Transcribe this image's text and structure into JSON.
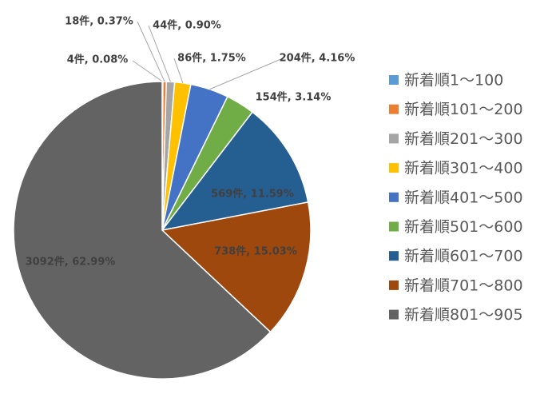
{
  "chart_data": {
    "type": "pie",
    "categories": [
      "新着順1～100",
      "新着順101～200",
      "新着順201～300",
      "新着順301～400",
      "新着順401～500",
      "新着順501～600",
      "新着順601～700",
      "新着順701～800",
      "新着順801～905"
    ],
    "values": [
      4,
      18,
      44,
      86,
      204,
      154,
      569,
      738,
      3092
    ],
    "value_labels": [
      "4件, 0.08%",
      "18件, 0.37%",
      "44件, 0.90%",
      "86件, 1.75%",
      "204件, 4.16%",
      "154件, 3.14%",
      "569件, 11.59%",
      "738件, 15.03%",
      "3092件, 62.99%"
    ],
    "colors": [
      "#5b9bd5",
      "#ed7d31",
      "#a5a5a5",
      "#ffc000",
      "#4472c4",
      "#70ad47",
      "#255e91",
      "#9e480e",
      "#636363"
    ],
    "legend": "right"
  }
}
